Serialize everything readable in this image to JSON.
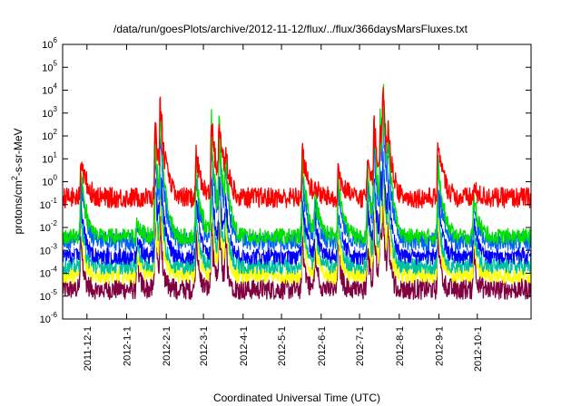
{
  "chart_data": {
    "type": "line",
    "title": "/data/run/goesPlots/archive/2012-11-12/flux/../flux/366daysMarsFluxes.txt",
    "xlabel": "Coordinated Universal Time (UTC)",
    "ylabel": "protons/cm²-s-sr-MeV",
    "yscale": "log",
    "ylim": [
      1e-06,
      1000000.0
    ],
    "xlim": [
      "2011-11-12",
      "2012-11-12"
    ],
    "y_ticks": [
      {
        "exp": "-6"
      },
      {
        "exp": "-5"
      },
      {
        "exp": "-4"
      },
      {
        "exp": "-3"
      },
      {
        "exp": "-2"
      },
      {
        "exp": "-1"
      },
      {
        "exp": "0"
      },
      {
        "exp": "1"
      },
      {
        "exp": "2"
      },
      {
        "exp": "3"
      },
      {
        "exp": "4"
      },
      {
        "exp": "5"
      },
      {
        "exp": "6"
      }
    ],
    "y_tick_base": "10",
    "x_ticks": [
      {
        "label": "2011-12-1",
        "date": "2011-12-01"
      },
      {
        "label": "2012-1-1",
        "date": "2012-01-01"
      },
      {
        "label": "2012-2-1",
        "date": "2012-02-01"
      },
      {
        "label": "2012-3-1",
        "date": "2012-03-01"
      },
      {
        "label": "2012-4-1",
        "date": "2012-04-01"
      },
      {
        "label": "2012-5-1",
        "date": "2012-05-01"
      },
      {
        "label": "2012-6-1",
        "date": "2012-06-01"
      },
      {
        "label": "2012-7-1",
        "date": "2012-07-01"
      },
      {
        "label": "2012-8-1",
        "date": "2012-08-01"
      },
      {
        "label": "2012-9-1",
        "date": "2012-09-01"
      },
      {
        "label": "2012-10-1",
        "date": "2012-10-01"
      }
    ],
    "grid": false,
    "legend": "none",
    "series": [
      {
        "color": "#800040",
        "baseline": 2e-05,
        "noise": 0.45
      },
      {
        "color": "#ffff00",
        "baseline": 8e-05,
        "noise": 0.35
      },
      {
        "color": "#00c0a0",
        "baseline": 0.0002,
        "noise": 0.35
      },
      {
        "color": "#0000ff",
        "baseline": 0.0006,
        "noise": 0.4
      },
      {
        "color": "#ffffff",
        "baseline": 0.0015,
        "noise": 0.3
      },
      {
        "color": "#0060ff",
        "baseline": 0.0025,
        "noise": 0.4
      },
      {
        "color": "#00e000",
        "baseline": 0.004,
        "noise": 0.35
      },
      {
        "color": "#ff0000",
        "baseline": 0.2,
        "noise": 0.45
      }
    ],
    "events": [
      {
        "date": "2011-11-26",
        "peak": 20
      },
      {
        "date": "2012-01-09",
        "peak": 0.02
      },
      {
        "date": "2012-01-23",
        "peak": 600
      },
      {
        "date": "2012-01-27",
        "peak": 300
      },
      {
        "date": "2012-02-24",
        "peak": 30
      },
      {
        "date": "2012-03-07",
        "peak": 1000
      },
      {
        "date": "2012-03-13",
        "peak": 200
      },
      {
        "date": "2012-03-18",
        "peak": 2
      },
      {
        "date": "2012-05-17",
        "peak": 50
      },
      {
        "date": "2012-05-27",
        "peak": 0.5
      },
      {
        "date": "2012-06-14",
        "peak": 5
      },
      {
        "date": "2012-07-07",
        "peak": 10
      },
      {
        "date": "2012-07-12",
        "peak": 200
      },
      {
        "date": "2012-07-17",
        "peak": 100
      },
      {
        "date": "2012-07-19",
        "peak": 100
      },
      {
        "date": "2012-07-23",
        "peak": 5
      },
      {
        "date": "2012-08-31",
        "peak": 150
      },
      {
        "date": "2012-09-28",
        "peak": 0.5
      }
    ]
  }
}
